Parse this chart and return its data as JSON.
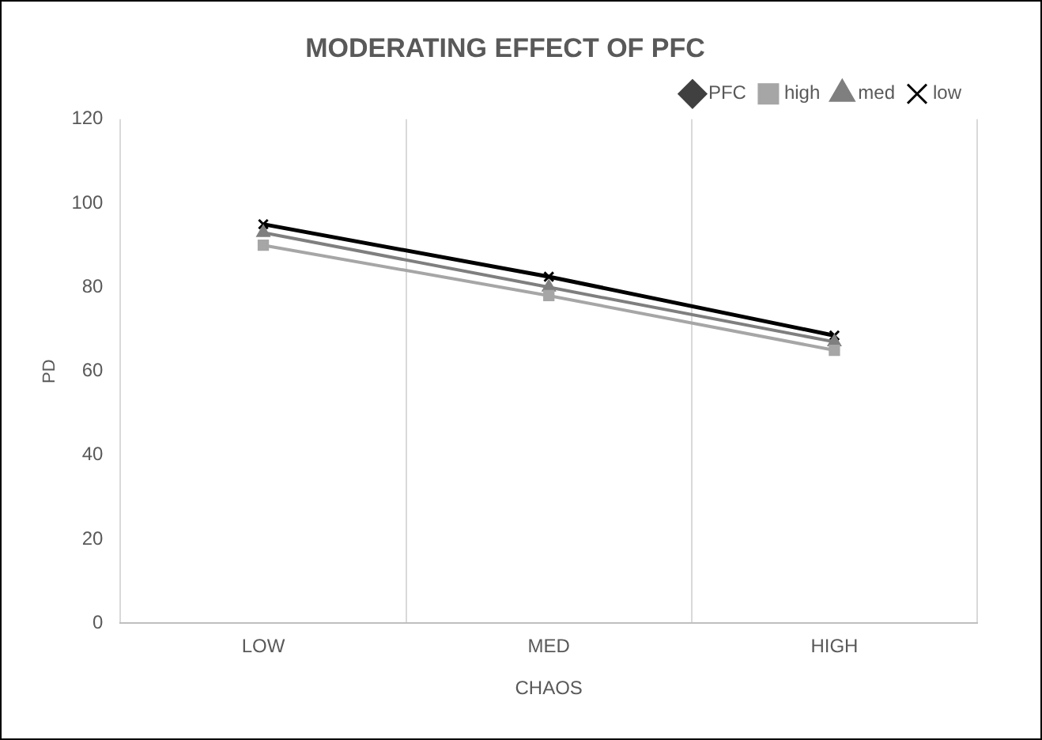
{
  "chart_data": {
    "type": "line",
    "title": "MODERATING EFFECT OF PFC",
    "xlabel": "CHAOS",
    "ylabel": "PD",
    "categories": [
      "LOW",
      "MED",
      "HIGH"
    ],
    "ylim": [
      0,
      120
    ],
    "yticks": [
      0,
      20,
      40,
      60,
      80,
      100,
      120
    ],
    "grid": "x",
    "legend": "top right",
    "series": [
      {
        "name": "PFC",
        "color": "#404040",
        "marker": "diamond",
        "values": [
          null,
          null,
          null
        ]
      },
      {
        "name": "high",
        "color": "#a6a6a6",
        "marker": "square",
        "values": [
          90,
          78,
          65
        ]
      },
      {
        "name": "med",
        "color": "#7f7f7f",
        "marker": "triangle",
        "values": [
          93,
          80,
          67
        ]
      },
      {
        "name": "low",
        "color": "#000000",
        "marker": "cross",
        "values": [
          95,
          82.5,
          68.5
        ]
      }
    ]
  }
}
